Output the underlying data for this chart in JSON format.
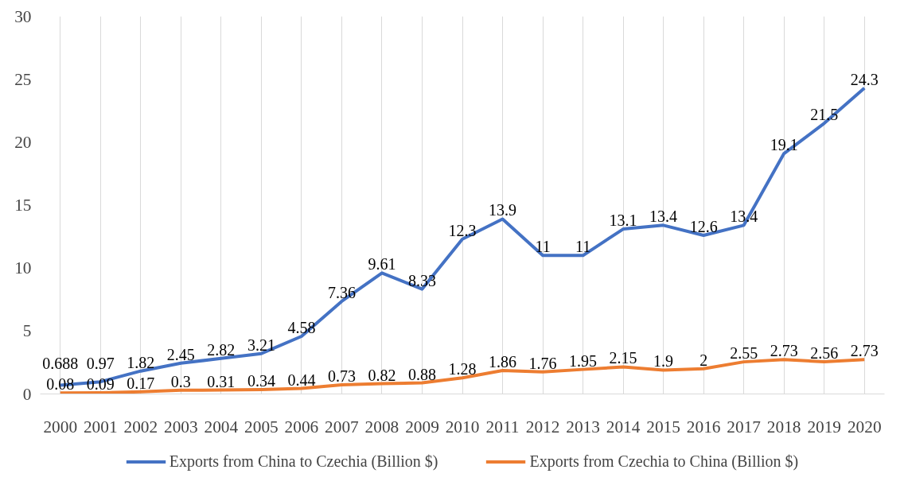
{
  "chart_data": {
    "type": "line",
    "categories": [
      "2000",
      "2001",
      "2002",
      "2003",
      "2004",
      "2005",
      "2006",
      "2007",
      "2008",
      "2009",
      "2010",
      "2011",
      "2012",
      "2013",
      "2014",
      "2015",
      "2016",
      "2017",
      "2018",
      "2019",
      "2020"
    ],
    "series": [
      {
        "name": "Exports from China to Czechia (Billion $)",
        "color": "#4472c4",
        "values": [
          0.688,
          0.97,
          1.82,
          2.45,
          2.82,
          3.21,
          4.58,
          7.36,
          9.61,
          8.33,
          12.3,
          13.9,
          11,
          11,
          13.1,
          13.4,
          12.6,
          13.4,
          19.1,
          21.5,
          24.3
        ]
      },
      {
        "name": "Exports from Czechia to China (Billion $)",
        "color": "#ed7d31",
        "values": [
          0.08,
          0.09,
          0.17,
          0.3,
          0.31,
          0.34,
          0.44,
          0.73,
          0.82,
          0.88,
          1.28,
          1.86,
          1.76,
          1.95,
          2.15,
          1.9,
          2,
          2.55,
          2.73,
          2.56,
          2.73
        ]
      }
    ],
    "ylim": [
      0,
      30
    ],
    "yticks": [
      0,
      5,
      10,
      15,
      20,
      25,
      30
    ],
    "grid": "x",
    "legend": "bottom",
    "data_labels": true,
    "marker": "none",
    "line_style": "solid"
  }
}
